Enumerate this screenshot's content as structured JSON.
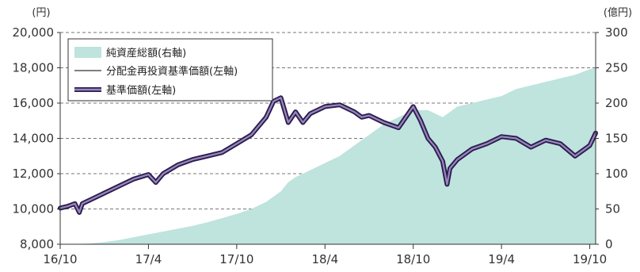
{
  "chart_data": {
    "type": "line",
    "title": "",
    "left_axis": {
      "unit": "(円)",
      "ticks": [
        "8,000",
        "10,000",
        "12,000",
        "14,000",
        "16,000",
        "18,000",
        "20,000"
      ],
      "tick_values": [
        8000,
        10000,
        12000,
        14000,
        16000,
        18000,
        20000
      ],
      "range": [
        8000,
        20000
      ]
    },
    "right_axis": {
      "unit": "(億円)",
      "ticks": [
        "0",
        "50",
        "100",
        "150",
        "200",
        "250",
        "300"
      ],
      "tick_values": [
        0,
        50,
        100,
        150,
        200,
        250,
        300
      ],
      "range": [
        0,
        300
      ]
    },
    "x_ticks": [
      "16/10",
      "17/4",
      "17/10",
      "18/4",
      "18/10",
      "19/4",
      "19/10"
    ],
    "x_tick_values": [
      0,
      6,
      12,
      18,
      24,
      30,
      36
    ],
    "x_range": [
      0,
      36.4
    ],
    "grid": "dashed",
    "legend": {
      "placement": "top-left",
      "entries": [
        "純資産総額(右軸)",
        "分配金再投資基準価額(左軸)",
        "基準価額(左軸)"
      ]
    },
    "colors": {
      "area": "#bfe3dd",
      "nav_fill": "#9b88b8",
      "nav_outline": "#2a1d52",
      "reinvested": "#555555"
    },
    "series": [
      {
        "name": "純資産総額(右軸)",
        "axis": "right",
        "kind": "area",
        "x": [
          0,
          1,
          2,
          3,
          4,
          5,
          6,
          7,
          8,
          9,
          10,
          11,
          12,
          13,
          14,
          15,
          15.5,
          16,
          17,
          18,
          19,
          20,
          21,
          22,
          23,
          24,
          25,
          26,
          27,
          28,
          29,
          30,
          31,
          32,
          33,
          34,
          35,
          36,
          36.4
        ],
        "values": [
          0,
          0.5,
          1,
          3,
          6,
          10,
          14,
          18,
          22,
          26,
          31,
          37,
          43,
          50,
          60,
          75,
          88,
          95,
          105,
          115,
          125,
          140,
          155,
          170,
          180,
          190,
          190,
          180,
          195,
          200,
          205,
          210,
          220,
          225,
          230,
          235,
          240,
          248,
          250
        ]
      },
      {
        "name": "分配金再投資基準価額(左軸)",
        "axis": "left",
        "kind": "line",
        "x": [
          0,
          0.5,
          1,
          1.3,
          1.5,
          2,
          3,
          4,
          5,
          6,
          6.5,
          7,
          8,
          9,
          10,
          11,
          12,
          13,
          14,
          14.5,
          15,
          15.5,
          16,
          16.5,
          17,
          18,
          19,
          20,
          20.5,
          21,
          22,
          23,
          24,
          24.5,
          25,
          25.5,
          26,
          26.3,
          26.5,
          27,
          28,
          29,
          30,
          31,
          32,
          33,
          34,
          35,
          36,
          36.4
        ],
        "values": [
          10050,
          10150,
          10300,
          9800,
          10300,
          10500,
          10900,
          11300,
          11700,
          11950,
          11500,
          12000,
          12500,
          12800,
          13000,
          13200,
          13700,
          14200,
          15200,
          16100,
          16300,
          14900,
          15500,
          14900,
          15400,
          15800,
          15900,
          15500,
          15200,
          15300,
          14900,
          14600,
          15800,
          15000,
          14000,
          13500,
          12700,
          11400,
          12300,
          12800,
          13400,
          13700,
          14100,
          14000,
          13500,
          13900,
          13700,
          13000,
          13600,
          14300
        ]
      },
      {
        "name": "基準価額(左軸)",
        "axis": "left",
        "kind": "line",
        "x": [
          0,
          0.5,
          1,
          1.3,
          1.5,
          2,
          3,
          4,
          5,
          6,
          6.5,
          7,
          8,
          9,
          10,
          11,
          12,
          13,
          14,
          14.5,
          15,
          15.5,
          16,
          16.5,
          17,
          18,
          19,
          20,
          20.5,
          21,
          22,
          23,
          24,
          24.5,
          25,
          25.5,
          26,
          26.3,
          26.5,
          27,
          28,
          29,
          30,
          31,
          32,
          33,
          34,
          35,
          36,
          36.4
        ],
        "values": [
          10050,
          10150,
          10300,
          9800,
          10300,
          10500,
          10900,
          11300,
          11700,
          11950,
          11500,
          12000,
          12500,
          12800,
          13000,
          13200,
          13700,
          14200,
          15200,
          16100,
          16300,
          14900,
          15500,
          14900,
          15400,
          15800,
          15900,
          15500,
          15200,
          15300,
          14900,
          14600,
          15800,
          15000,
          14000,
          13500,
          12700,
          11400,
          12300,
          12800,
          13400,
          13700,
          14100,
          14000,
          13500,
          13900,
          13700,
          13000,
          13600,
          14300
        ]
      }
    ]
  }
}
